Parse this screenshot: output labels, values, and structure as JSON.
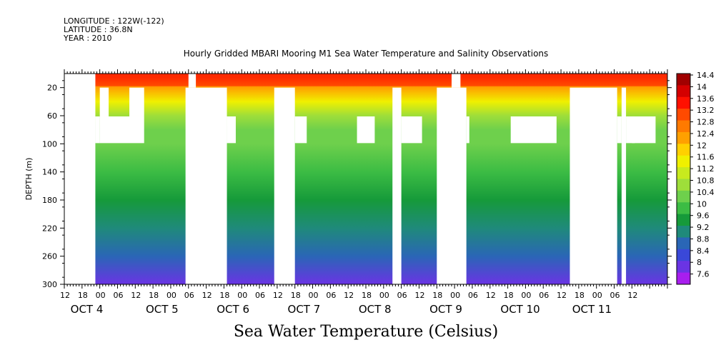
{
  "header": {
    "longitude": "LONGITUDE : 122W(-122)",
    "latitude": "LATITUDE : 36.8N",
    "year": "YEAR : 2010"
  },
  "chart_title": "Hourly Gridded MBARI Mooring M1 Sea Water Temperature and Salinity Observations",
  "footer_title": "Sea Water Temperature (Celsius)",
  "chart_data": {
    "type": "heatmap",
    "title": "Hourly Gridded MBARI Mooring M1 Sea Water Temperature and Salinity Observations",
    "xlabel": "",
    "ylabel": "DEPTH (m)",
    "x_range_hours": [
      0,
      204
    ],
    "y_range": [
      0,
      300
    ],
    "y_axis_reversed": true,
    "y_ticks": [
      20,
      60,
      100,
      140,
      180,
      220,
      260,
      300
    ],
    "x_tick_labels": [
      "12",
      "18",
      "00",
      "06",
      "12",
      "18",
      "00",
      "06",
      "12",
      "18",
      "00",
      "06",
      "12",
      "18",
      "00",
      "06",
      "12",
      "18",
      "00",
      "06",
      "12",
      "18",
      "00",
      "06",
      "12",
      "18",
      "00",
      "06",
      "12",
      "18",
      "00",
      "06",
      "12"
    ],
    "date_labels": [
      "OCT  4",
      "OCT  5",
      "OCT  6",
      "OCT  7",
      "OCT  8",
      "OCT  9",
      "OCT 10",
      "OCT 11"
    ],
    "colorbar_levels": [
      "14.4",
      "14",
      "13.6",
      "13.2",
      "12.8",
      "12.4",
      "12",
      "11.6",
      "11.2",
      "10.8",
      "10.4",
      "10",
      "9.6",
      "9.2",
      "8.8",
      "8.4",
      "8",
      "7.6"
    ],
    "colorbar_colors": [
      "#a00000",
      "#d40000",
      "#ff1000",
      "#ff4a00",
      "#ff7a00",
      "#ffa000",
      "#ffd000",
      "#f0f000",
      "#c8ea1e",
      "#9ede3a",
      "#6ed04c",
      "#3cbc44",
      "#169a3a",
      "#1f8a7a",
      "#2a66b6",
      "#3a48d8",
      "#6a34e4",
      "#a81eee"
    ],
    "profile_temperature_c": [
      {
        "depth": 5,
        "temp": 13.0
      },
      {
        "depth": 20,
        "temp": 12.2
      },
      {
        "depth": 40,
        "temp": 11.2
      },
      {
        "depth": 60,
        "temp": 10.7
      },
      {
        "depth": 80,
        "temp": 10.3
      },
      {
        "depth": 100,
        "temp": 10.0
      },
      {
        "depth": 140,
        "temp": 9.8
      },
      {
        "depth": 180,
        "temp": 9.3
      },
      {
        "depth": 220,
        "temp": 8.8
      },
      {
        "depth": 260,
        "temp": 8.4
      },
      {
        "depth": 300,
        "temp": 7.9
      }
    ],
    "missing_data_blocks": [
      {
        "x": [
          0,
          10.5
        ],
        "y": [
          0,
          300
        ]
      },
      {
        "x": [
          10.5,
          12
        ],
        "y": [
          61,
          99
        ]
      },
      {
        "x": [
          12,
          15
        ],
        "y": [
          20,
          61
        ]
      },
      {
        "x": [
          12,
          27
        ],
        "y": [
          61,
          99
        ]
      },
      {
        "x": [
          22,
          27
        ],
        "y": [
          20,
          61
        ]
      },
      {
        "x": [
          42,
          44.5
        ],
        "y": [
          0,
          20
        ]
      },
      {
        "x": [
          41,
          55
        ],
        "y": [
          20,
          300
        ]
      },
      {
        "x": [
          55,
          58
        ],
        "y": [
          61,
          99
        ]
      },
      {
        "x": [
          71,
          78
        ],
        "y": [
          20,
          300
        ]
      },
      {
        "x": [
          78,
          82
        ],
        "y": [
          61,
          99
        ]
      },
      {
        "x": [
          99,
          105
        ],
        "y": [
          61,
          99
        ]
      },
      {
        "x": [
          111,
          114
        ],
        "y": [
          20,
          300
        ]
      },
      {
        "x": [
          114,
          121
        ],
        "y": [
          61,
          99
        ]
      },
      {
        "x": [
          131,
          134
        ],
        "y": [
          0,
          20
        ]
      },
      {
        "x": [
          126,
          136
        ],
        "y": [
          20,
          300
        ]
      },
      {
        "x": [
          136,
          137
        ],
        "y": [
          61,
          99
        ]
      },
      {
        "x": [
          151,
          166.5
        ],
        "y": [
          61,
          99
        ]
      },
      {
        "x": [
          171,
          187
        ],
        "y": [
          20,
          300
        ]
      },
      {
        "x": [
          187,
          188.5
        ],
        "y": [
          61,
          99
        ]
      },
      {
        "x": [
          188.5,
          190
        ],
        "y": [
          20,
          300
        ]
      },
      {
        "x": [
          190,
          193
        ],
        "y": [
          61,
          99
        ]
      },
      {
        "x": [
          192,
          200
        ],
        "y": [
          61,
          99
        ]
      }
    ]
  }
}
